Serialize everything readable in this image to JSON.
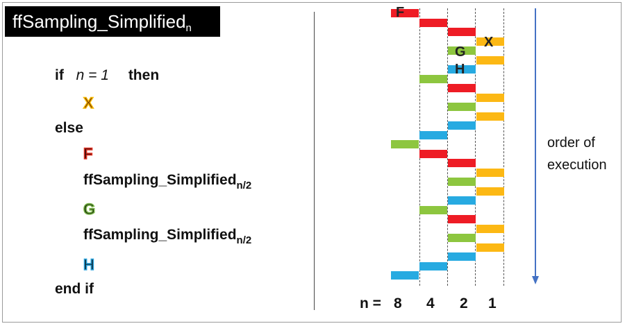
{
  "title": {
    "main": "ffSampling_Simplified",
    "sub": "n"
  },
  "pseudocode": {
    "if_kw": "if",
    "condition": "n = 1",
    "then_kw": "then",
    "leaf_step": "X",
    "else_kw": "else",
    "step_f": "F",
    "call_1": "ffSampling_Simplified",
    "call_1_sub": "n/2",
    "step_g": "G",
    "call_2": "ffSampling_Simplified",
    "call_2_sub": "n/2",
    "step_h": "H",
    "end_kw": "end if"
  },
  "timeline": {
    "n_prefix": "n =",
    "levels": [
      "8",
      "4",
      "2",
      "1"
    ],
    "bar_labels": {
      "F": "F",
      "X": "X",
      "G": "G",
      "H": "H"
    },
    "colors": {
      "F": "#ee1c25",
      "G": "#8dc63f",
      "H": "#27aae1",
      "X": "#fcb814"
    },
    "execution_order": [
      "F8",
      "F4",
      "F2",
      "X",
      "G2",
      "X",
      "H2",
      "G4",
      "F2",
      "X",
      "G2",
      "X",
      "H2",
      "H4",
      "G8",
      "F4",
      "F2",
      "X",
      "G2",
      "X",
      "H2",
      "G4",
      "F2",
      "X",
      "G2",
      "X",
      "H2",
      "H4",
      "H8"
    ]
  },
  "arrow_label": {
    "line1": "order of",
    "line2": "execution"
  }
}
